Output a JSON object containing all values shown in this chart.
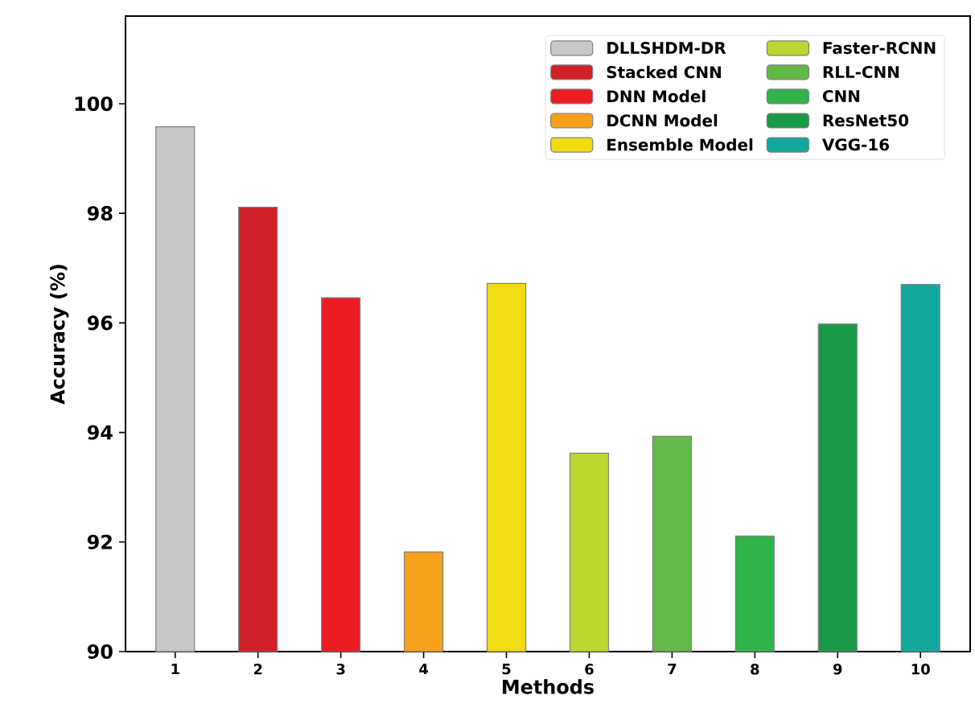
{
  "chart_data": {
    "type": "bar",
    "xlabel": "Methods",
    "ylabel": "Accuracy (%)",
    "categories": [
      "1",
      "2",
      "3",
      "4",
      "5",
      "6",
      "7",
      "8",
      "9",
      "10"
    ],
    "series": [
      {
        "name": "DLLSHDM-DR",
        "color": "#c8c8c8",
        "values": [
          99.58,
          null,
          null,
          null,
          null,
          null,
          null,
          null,
          null,
          null
        ]
      },
      {
        "name": "Stacked CNN",
        "color": "#d12027",
        "values": [
          null,
          98.11,
          null,
          null,
          null,
          null,
          null,
          null,
          null,
          null
        ]
      },
      {
        "name": "DNN Model",
        "color": "#ed1c24",
        "values": [
          null,
          null,
          96.46,
          null,
          null,
          null,
          null,
          null,
          null,
          null
        ]
      },
      {
        "name": "DCNN Model",
        "color": "#f7a01c",
        "values": [
          null,
          null,
          null,
          91.82,
          null,
          null,
          null,
          null,
          null,
          null
        ]
      },
      {
        "name": "Ensemble Model",
        "color": "#f0dc10",
        "values": [
          null,
          null,
          null,
          null,
          96.72,
          null,
          null,
          null,
          null,
          null
        ]
      },
      {
        "name": "Faster-RCNN",
        "color": "#bdd630",
        "values": [
          null,
          null,
          null,
          null,
          null,
          93.62,
          null,
          null,
          null,
          null
        ]
      },
      {
        "name": "RLL-CNN",
        "color": "#62b946",
        "values": [
          null,
          null,
          null,
          null,
          null,
          null,
          93.93,
          null,
          null,
          null
        ]
      },
      {
        "name": "CNN",
        "color": "#2fb34a",
        "values": [
          null,
          null,
          null,
          null,
          null,
          null,
          null,
          92.11,
          null,
          null
        ]
      },
      {
        "name": "ResNet50",
        "color": "#1a9a48",
        "values": [
          null,
          null,
          null,
          null,
          null,
          null,
          null,
          null,
          95.98,
          null
        ]
      },
      {
        "name": "VGG-16",
        "color": "#13a89e",
        "values": [
          null,
          null,
          null,
          null,
          null,
          null,
          null,
          null,
          null,
          96.7
        ]
      }
    ],
    "ylim": [
      90,
      101.6
    ],
    "yticks": [
      90,
      92,
      94,
      96,
      98,
      100
    ],
    "legend": "top right",
    "grid": false
  }
}
